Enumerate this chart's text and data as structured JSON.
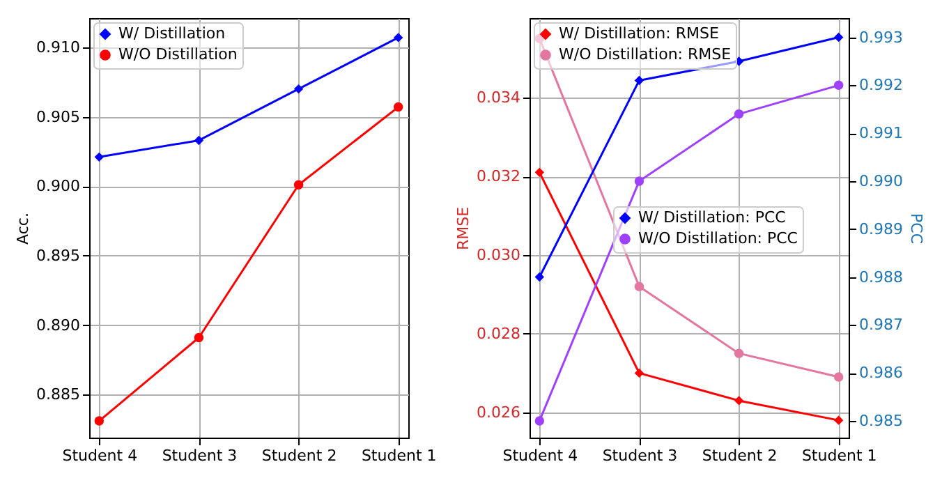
{
  "chart_data": [
    {
      "type": "line",
      "ylabel": "Acc.",
      "categories": [
        "Student 4",
        "Student 3",
        "Student 2",
        "Student 1"
      ],
      "series": [
        {
          "name": "W/ Distillation",
          "color": "#0000ff",
          "marker": "diamond",
          "values": [
            0.9021,
            0.9033,
            0.907,
            0.9107
          ]
        },
        {
          "name": "W/O Distillation",
          "color": "#ff0000",
          "marker": "circle",
          "values": [
            0.8831,
            0.8891,
            0.9001,
            0.9057
          ]
        }
      ],
      "ylim": [
        0.8819,
        0.9121
      ],
      "yticks": [
        {
          "value": 0.885,
          "label": "0.885"
        },
        {
          "value": 0.89,
          "label": "0.890"
        },
        {
          "value": 0.895,
          "label": "0.895"
        },
        {
          "value": 0.9,
          "label": "0.900"
        },
        {
          "value": 0.905,
          "label": "0.905"
        },
        {
          "value": 0.91,
          "label": "0.910"
        }
      ],
      "grid": true,
      "legend": "top left"
    },
    {
      "type": "line",
      "ylabel": "RMSE",
      "y2label": "PCC",
      "categories": [
        "Student 4",
        "Student 3",
        "Student 2",
        "Student 1"
      ],
      "series": [
        {
          "name": "W/ Distillation: RMSE",
          "color": "#ff0000",
          "marker": "diamond",
          "values": [
            0.0321,
            0.027,
            0.0263,
            0.0258
          ]
        },
        {
          "name": "W/O Distillation: RMSE",
          "color": "#e377a0",
          "marker": "circle",
          "values": [
            0.0355,
            0.0292,
            0.0275,
            0.0269
          ]
        },
        {
          "name": "W/ Distillation: PCC",
          "color": "#0000ff",
          "marker": "diamond",
          "axis": "y2",
          "values": [
            0.988,
            0.9921,
            0.9925,
            0.993
          ]
        },
        {
          "name": "W/O Distillation: PCC",
          "color": "#a040ff",
          "marker": "circle",
          "axis": "y2",
          "values": [
            0.985,
            0.99,
            0.9914,
            0.992
          ]
        }
      ],
      "ylim": [
        0.02536,
        0.03602
      ],
      "yticks": [
        {
          "value": 0.026,
          "label": "0.026"
        },
        {
          "value": 0.028,
          "label": "0.028"
        },
        {
          "value": 0.03,
          "label": "0.030"
        },
        {
          "value": 0.032,
          "label": "0.032"
        },
        {
          "value": 0.034,
          "label": "0.034"
        }
      ],
      "y2lim": [
        0.98465,
        0.9934
      ],
      "y2ticks": [
        {
          "value": 0.985,
          "label": "0.985"
        },
        {
          "value": 0.986,
          "label": "0.986"
        },
        {
          "value": 0.987,
          "label": "0.987"
        },
        {
          "value": 0.988,
          "label": "0.988"
        },
        {
          "value": 0.989,
          "label": "0.989"
        },
        {
          "value": 0.99,
          "label": "0.990"
        },
        {
          "value": 0.991,
          "label": "0.991"
        },
        {
          "value": 0.992,
          "label": "0.992"
        },
        {
          "value": 0.993,
          "label": "0.993"
        }
      ],
      "grid": true,
      "legend": "top left"
    }
  ]
}
